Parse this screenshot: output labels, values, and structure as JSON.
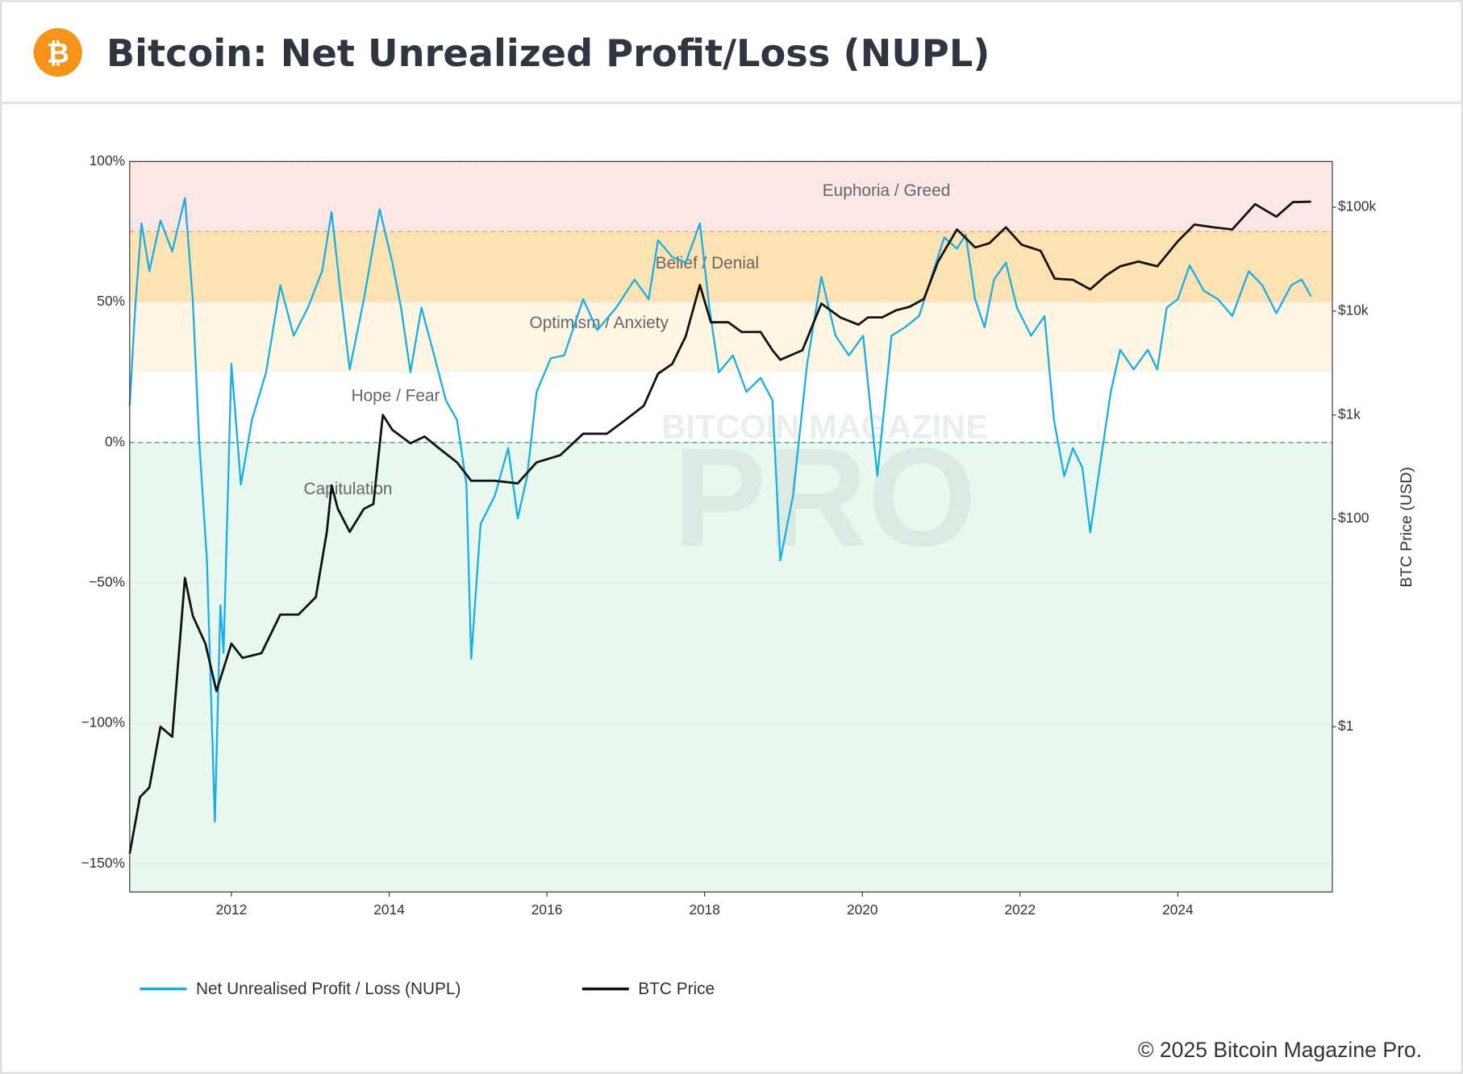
{
  "chart_data": {
    "type": "line",
    "title": "Bitcoin: Net Unrealized Profit/Loss (NUPL)",
    "footer": "© 2025 Bitcoin Magazine Pro.",
    "watermark": {
      "top": "BITCOIN MAGAZINE",
      "main": "PRO"
    },
    "y2_label": "BTC Price (USD)",
    "xlim": [
      2010.71,
      2025.96
    ],
    "xticks": [
      2012,
      2014,
      2016,
      2018,
      2020,
      2022,
      2024
    ],
    "ylim": [
      -160,
      100
    ],
    "yticks": [
      {
        "value": 100,
        "label": "100%"
      },
      {
        "value": 50,
        "label": "50%"
      },
      {
        "value": 0,
        "label": "0%"
      },
      {
        "value": -50,
        "label": "−50%"
      },
      {
        "value": -100,
        "label": "−100%"
      },
      {
        "value": -150,
        "label": "−150%"
      }
    ],
    "y2lim": [
      0.0257,
      275000
    ],
    "y2log": true,
    "y2ticks": [
      {
        "value": 1,
        "label": "$1"
      },
      {
        "value": 100,
        "label": "$100"
      },
      {
        "value": 1000,
        "label": "$1k"
      },
      {
        "value": 10000,
        "label": "$10k"
      },
      {
        "value": 100000,
        "label": "$100k"
      }
    ],
    "grid": true,
    "zones": [
      {
        "label": "Euphoria / Greed",
        "from": 75,
        "to": 100,
        "color": "#fde6e6",
        "dash_color": "#f3a6a6"
      },
      {
        "label": "Belief / Denial",
        "from": 50,
        "to": 75,
        "color": "#fde3b4",
        "dash_color": "#f0a050"
      },
      {
        "label": "Optimism / Anxiety",
        "from": 25,
        "to": 50,
        "color": "#fef6e2"
      },
      {
        "label": "Hope / Fear",
        "from": 0,
        "to": 25,
        "color": "#ffffff"
      },
      {
        "label": "Capitulation",
        "to": 0,
        "color": "#e8f8ef",
        "dash_color": "#5aa86a"
      }
    ],
    "series": [
      {
        "name": "Net Unrealised Profit / Loss (NUPL)",
        "color": "#19aee6",
        "x": [
          2010.71,
          2010.78,
          2010.86,
          2010.96,
          2011.1,
          2011.25,
          2011.41,
          2011.51,
          2011.59,
          2011.69,
          2011.79,
          2011.86,
          2011.9,
          2012.0,
          2012.12,
          2012.26,
          2012.44,
          2012.62,
          2012.79,
          2012.97,
          2013.15,
          2013.27,
          2013.38,
          2013.5,
          2013.68,
          2013.88,
          2014.04,
          2014.15,
          2014.27,
          2014.41,
          2014.57,
          2014.72,
          2014.86,
          2014.98,
          2015.04,
          2015.16,
          2015.34,
          2015.51,
          2015.63,
          2015.75,
          2015.87,
          2016.05,
          2016.22,
          2016.46,
          2016.64,
          2016.88,
          2017.11,
          2017.29,
          2017.41,
          2017.59,
          2017.76,
          2017.94,
          2018.06,
          2018.18,
          2018.36,
          2018.53,
          2018.71,
          2018.86,
          2018.96,
          2019.12,
          2019.3,
          2019.48,
          2019.66,
          2019.83,
          2020.01,
          2020.19,
          2020.37,
          2020.54,
          2020.72,
          2020.9,
          2021.04,
          2021.2,
          2021.31,
          2021.43,
          2021.55,
          2021.67,
          2021.82,
          2021.96,
          2022.14,
          2022.31,
          2022.43,
          2022.56,
          2022.67,
          2022.79,
          2022.89,
          2023.03,
          2023.15,
          2023.27,
          2023.44,
          2023.62,
          2023.74,
          2023.86,
          2024.0,
          2024.15,
          2024.33,
          2024.51,
          2024.69,
          2024.9,
          2025.07,
          2025.25,
          2025.44,
          2025.57,
          2025.69
        ],
        "values": [
          13,
          48,
          78,
          61,
          79,
          68,
          87,
          51,
          1,
          -42,
          -135,
          -58,
          -75,
          28,
          -15,
          8,
          25,
          56,
          38,
          48,
          61,
          82,
          54,
          26,
          51,
          83,
          64,
          48,
          25,
          48,
          31,
          15,
          8,
          -15,
          -77,
          -29,
          -19,
          -2,
          -27,
          -12,
          18,
          30,
          31,
          51,
          40,
          48,
          58,
          51,
          72,
          66,
          64,
          78,
          48,
          25,
          31,
          18,
          23,
          15,
          -42,
          -19,
          28,
          59,
          38,
          31,
          38,
          -12,
          38,
          41,
          45,
          61,
          73,
          69,
          74,
          51,
          41,
          58,
          64,
          48,
          38,
          45,
          8,
          -12,
          -2,
          -9,
          -32,
          -5,
          18,
          33,
          26,
          33,
          26,
          48,
          51,
          63,
          54,
          51,
          45,
          61,
          56,
          46,
          56,
          58,
          52
        ]
      },
      {
        "name": "BTC Price",
        "color": "#111111",
        "axis": "y2",
        "x": [
          2010.71,
          2010.84,
          2010.96,
          2011.1,
          2011.25,
          2011.41,
          2011.51,
          2011.67,
          2011.81,
          2012.0,
          2012.14,
          2012.38,
          2012.62,
          2012.85,
          2013.07,
          2013.21,
          2013.27,
          2013.35,
          2013.5,
          2013.68,
          2013.8,
          2013.92,
          2014.04,
          2014.27,
          2014.45,
          2014.63,
          2014.86,
          2015.04,
          2015.34,
          2015.63,
          2015.87,
          2016.17,
          2016.46,
          2016.76,
          2016.99,
          2017.23,
          2017.41,
          2017.59,
          2017.76,
          2017.94,
          2018.08,
          2018.3,
          2018.47,
          2018.71,
          2018.86,
          2018.96,
          2019.24,
          2019.48,
          2019.72,
          2019.95,
          2020.07,
          2020.25,
          2020.43,
          2020.6,
          2020.78,
          2020.96,
          2021.2,
          2021.43,
          2021.61,
          2021.82,
          2022.02,
          2022.26,
          2022.44,
          2022.67,
          2022.89,
          2023.09,
          2023.27,
          2023.5,
          2023.74,
          2024.0,
          2024.21,
          2024.45,
          2024.69,
          2024.98,
          2025.25,
          2025.46,
          2025.69
        ],
        "values": [
          0.06,
          0.21,
          0.26,
          1,
          0.8,
          27,
          11.7,
          6.3,
          2.2,
          6.3,
          4.6,
          5.1,
          12,
          12,
          17.7,
          75,
          210,
          125,
          75,
          125,
          139,
          1000,
          720,
          535,
          620,
          480,
          350,
          233,
          233,
          220,
          350,
          410,
          660,
          660,
          890,
          1230,
          2500,
          3100,
          5700,
          17800,
          7800,
          7800,
          6300,
          6300,
          4200,
          3400,
          4200,
          11800,
          8700,
          7400,
          8700,
          8700,
          10200,
          11000,
          13100,
          30000,
          61000,
          41000,
          45000,
          64000,
          43500,
          38000,
          20500,
          20000,
          16200,
          22000,
          27000,
          30000,
          27000,
          47000,
          68000,
          64000,
          61000,
          107000,
          81000,
          112000,
          113000
        ]
      }
    ]
  }
}
